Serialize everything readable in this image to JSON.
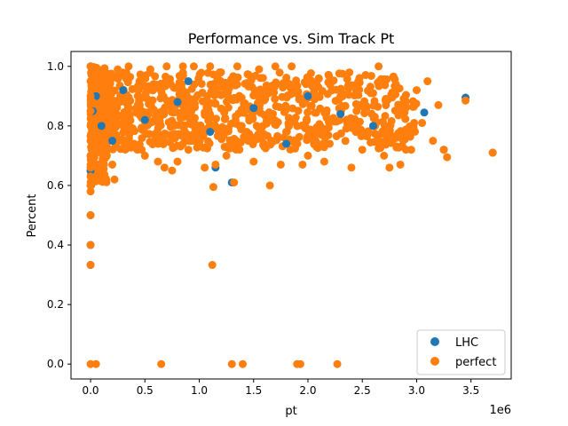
{
  "chart_data": {
    "type": "scatter",
    "title": "Performance vs. Sim Track Pt",
    "xlabel": "pt",
    "ylabel": "Percent",
    "x_offset_label": "1e6",
    "xlim": [
      -0.18,
      3.87
    ],
    "ylim": [
      -0.05,
      1.05
    ],
    "x_ticks": [
      0.0,
      0.5,
      1.0,
      1.5,
      2.0,
      2.5,
      3.0,
      3.5
    ],
    "x_tick_labels": [
      "0.0",
      "0.5",
      "1.0",
      "1.5",
      "2.0",
      "2.5",
      "3.0",
      "3.5"
    ],
    "y_ticks": [
      0.0,
      0.2,
      0.4,
      0.6,
      0.8,
      1.0
    ],
    "y_tick_labels": [
      "0.0",
      "0.2",
      "0.4",
      "0.6",
      "0.8",
      "1.0"
    ],
    "grid": false,
    "legend_position": "lower-right",
    "series": [
      {
        "name": "LHC",
        "color": "#1f77b4",
        "points": [
          [
            0.0,
            1.0
          ],
          [
            0.0,
            0.5
          ],
          [
            0.0,
            0.4
          ],
          [
            0.0,
            0.333
          ],
          [
            0.0,
            0.6
          ],
          [
            0.0,
            0.65
          ],
          [
            0.0,
            0.7
          ],
          [
            0.02,
            0.85
          ],
          [
            0.05,
            0.9
          ],
          [
            0.1,
            0.8
          ],
          [
            0.2,
            0.75
          ],
          [
            0.3,
            0.92
          ],
          [
            0.5,
            0.82
          ],
          [
            0.8,
            0.88
          ],
          [
            0.9,
            0.95
          ],
          [
            1.1,
            0.78
          ],
          [
            1.15,
            0.66
          ],
          [
            1.3,
            0.61
          ],
          [
            1.5,
            0.86
          ],
          [
            1.8,
            0.74
          ],
          [
            2.0,
            0.9
          ],
          [
            2.3,
            0.84
          ],
          [
            2.6,
            0.8
          ],
          [
            3.07,
            0.845
          ],
          [
            3.25,
            0.72
          ],
          [
            3.45,
            0.895
          ],
          [
            3.7,
            0.71
          ]
        ]
      },
      {
        "name": "perfect",
        "color": "#ff7f0e",
        "points": [
          [
            0.0,
            1.0
          ],
          [
            0.0,
            0.95
          ],
          [
            0.0,
            0.9
          ],
          [
            0.0,
            0.85
          ],
          [
            0.0,
            0.8
          ],
          [
            0.0,
            0.75
          ],
          [
            0.0,
            0.7
          ],
          [
            0.0,
            0.66
          ],
          [
            0.0,
            0.63
          ],
          [
            0.0,
            0.6
          ],
          [
            0.0,
            0.58
          ],
          [
            0.0,
            0.5
          ],
          [
            0.0,
            0.4
          ],
          [
            0.0,
            0.333
          ],
          [
            0.0,
            0.0
          ],
          [
            0.01,
            0.97
          ],
          [
            0.01,
            0.72
          ],
          [
            0.02,
            0.88
          ],
          [
            0.02,
            0.68
          ],
          [
            0.05,
            0.0
          ],
          [
            0.06,
            0.66
          ],
          [
            0.1,
            0.98
          ],
          [
            0.12,
            0.75
          ],
          [
            0.15,
            0.7
          ],
          [
            0.2,
            0.67
          ],
          [
            0.22,
            0.62
          ],
          [
            0.25,
            0.99
          ],
          [
            0.3,
            0.8
          ],
          [
            0.35,
            1.0
          ],
          [
            0.4,
            0.74
          ],
          [
            0.45,
            0.95
          ],
          [
            0.5,
            0.7
          ],
          [
            0.55,
            0.99
          ],
          [
            0.6,
            0.76
          ],
          [
            0.62,
            0.68
          ],
          [
            0.65,
            0.0
          ],
          [
            0.68,
            0.66
          ],
          [
            0.7,
            1.0
          ],
          [
            0.75,
            0.65
          ],
          [
            0.8,
            0.68
          ],
          [
            0.85,
            1.0
          ],
          [
            0.9,
            0.72
          ],
          [
            0.95,
            1.0
          ],
          [
            1.0,
            0.77
          ],
          [
            1.05,
            0.66
          ],
          [
            1.1,
            1.0
          ],
          [
            1.12,
            0.333
          ],
          [
            1.13,
            0.595
          ],
          [
            1.15,
            0.67
          ],
          [
            1.2,
            0.98
          ],
          [
            1.25,
            0.7
          ],
          [
            1.3,
            0.0
          ],
          [
            1.32,
            0.61
          ],
          [
            1.35,
            1.0
          ],
          [
            1.4,
            0.0
          ],
          [
            1.45,
            0.75
          ],
          [
            1.5,
            0.68
          ],
          [
            1.55,
            0.99
          ],
          [
            1.6,
            0.73
          ],
          [
            1.65,
            0.6
          ],
          [
            1.7,
            1.0
          ],
          [
            1.75,
            0.67
          ],
          [
            1.8,
            0.78
          ],
          [
            1.85,
            1.0
          ],
          [
            1.9,
            0.0
          ],
          [
            1.93,
            0.0
          ],
          [
            1.95,
            0.67
          ],
          [
            2.0,
            0.7
          ],
          [
            2.1,
            0.96
          ],
          [
            2.15,
            0.68
          ],
          [
            2.2,
            0.74
          ],
          [
            2.27,
            0.0
          ],
          [
            2.3,
            0.9
          ],
          [
            2.4,
            0.66
          ],
          [
            2.45,
            0.8
          ],
          [
            2.5,
            0.72
          ],
          [
            2.6,
            0.91
          ],
          [
            2.65,
            1.0
          ],
          [
            2.7,
            0.7
          ],
          [
            2.75,
            0.66
          ],
          [
            2.85,
            0.67
          ],
          [
            2.9,
            0.86
          ],
          [
            2.95,
            0.72
          ],
          [
            3.0,
            0.92
          ],
          [
            3.05,
            0.81
          ],
          [
            3.1,
            0.95
          ],
          [
            3.15,
            0.75
          ],
          [
            3.2,
            0.87
          ],
          [
            3.25,
            0.72
          ],
          [
            3.28,
            0.695
          ],
          [
            3.45,
            0.885
          ],
          [
            3.7,
            0.71
          ]
        ]
      }
    ],
    "dense_regions": [
      {
        "series": "perfect",
        "x_range": [
          0.0,
          3.0
        ],
        "y_range": [
          0.72,
          0.98
        ],
        "count": 900,
        "seed": 7
      },
      {
        "series": "perfect",
        "x_range": [
          0.0,
          0.15
        ],
        "y_range": [
          0.6,
          1.0
        ],
        "count": 200,
        "seed": 11
      }
    ]
  }
}
